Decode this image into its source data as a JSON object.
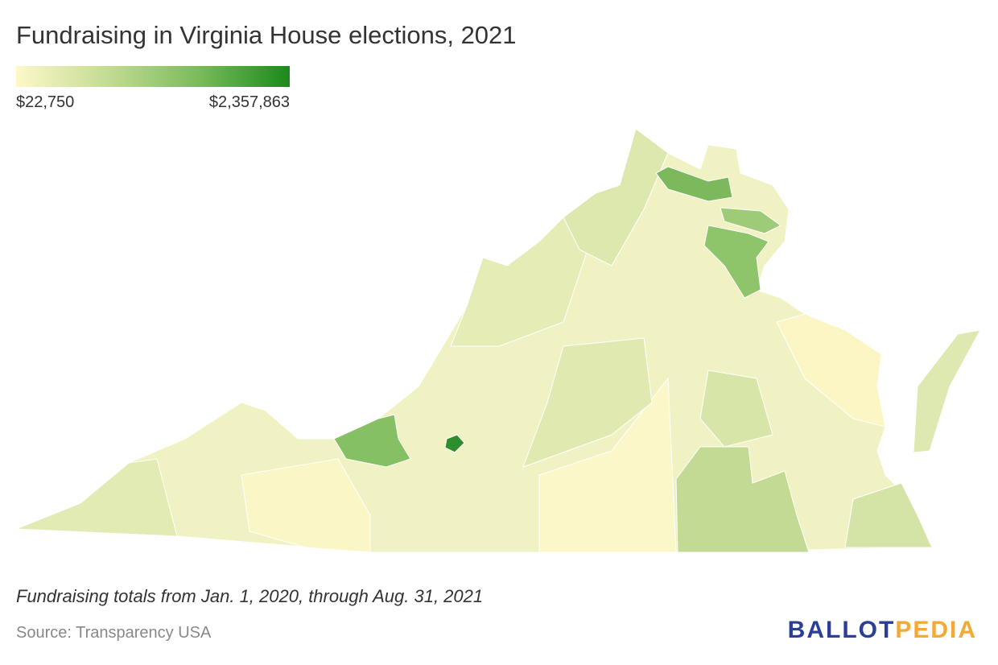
{
  "header": {
    "title": "Fundraising in Virginia House elections, 2021"
  },
  "legend": {
    "colors": [
      "#fdf8c8",
      "#c4dc94",
      "#7cbc5c",
      "#1a8a1a"
    ],
    "min": {
      "value": 22750,
      "label": "$22,750"
    },
    "max": {
      "value": 2357863,
      "label": "$2,357,863"
    }
  },
  "footer": {
    "note": "Fundraising totals from Jan. 1, 2020, through Aug. 31, 2021",
    "source": "Source: Transparency USA",
    "logo": [
      "BALLOT",
      "PEDIA"
    ]
  }
}
